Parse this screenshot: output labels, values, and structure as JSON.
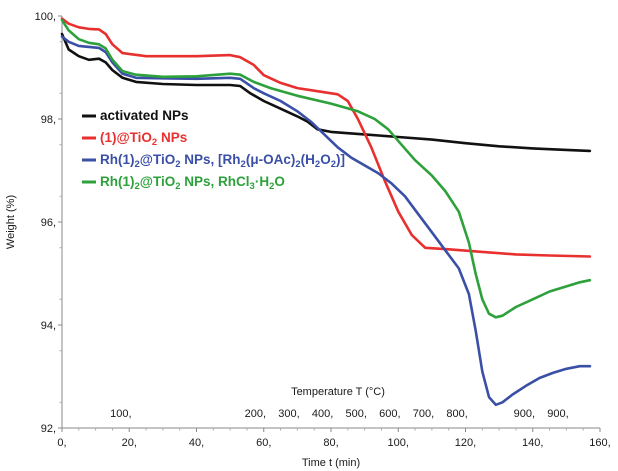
{
  "chart_data": {
    "type": "line",
    "xlabel": "Time  t  (min)",
    "ylabel": "Weight (%)",
    "secondary_axis_label": "Temperature  T  (°C)",
    "xlim": [
      0,
      160
    ],
    "ylim": [
      92,
      100
    ],
    "x_ticks": [
      0,
      20,
      40,
      60,
      80,
      100,
      120,
      140,
      160
    ],
    "x_tick_labels": [
      "0,",
      "20,",
      "40,",
      "60,",
      "80,",
      "100,",
      "120,",
      "140,",
      "160,"
    ],
    "y_ticks": [
      92,
      94,
      96,
      98,
      100
    ],
    "y_tick_labels": [
      "92,",
      "94,",
      "96,",
      "98,",
      "100,"
    ],
    "temperature_ticks": [
      {
        "x": 17.5,
        "label": "100,"
      },
      {
        "x": 57.5,
        "label": "200,"
      },
      {
        "x": 67.5,
        "label": "300,"
      },
      {
        "x": 77.5,
        "label": "400,"
      },
      {
        "x": 87.5,
        "label": "500,"
      },
      {
        "x": 97.5,
        "label": "600,"
      },
      {
        "x": 107.5,
        "label": "700,"
      },
      {
        "x": 117.5,
        "label": "800,"
      },
      {
        "x": 137.5,
        "label": "900,"
      },
      {
        "x": 147.5,
        "label": "900,"
      }
    ],
    "grid": false,
    "legend_position": "left",
    "series": [
      {
        "name": "activated NPs",
        "color": "#111111",
        "points": [
          [
            0,
            99.65
          ],
          [
            2,
            99.35
          ],
          [
            5,
            99.22
          ],
          [
            8,
            99.15
          ],
          [
            11,
            99.17
          ],
          [
            13,
            99.1
          ],
          [
            15,
            98.95
          ],
          [
            18,
            98.8
          ],
          [
            22,
            98.72
          ],
          [
            30,
            98.68
          ],
          [
            40,
            98.66
          ],
          [
            50,
            98.66
          ],
          [
            53,
            98.64
          ],
          [
            56,
            98.5
          ],
          [
            60,
            98.35
          ],
          [
            65,
            98.2
          ],
          [
            70,
            98.05
          ],
          [
            73,
            97.95
          ],
          [
            76,
            97.8
          ],
          [
            80,
            97.75
          ],
          [
            90,
            97.7
          ],
          [
            100,
            97.65
          ],
          [
            110,
            97.6
          ],
          [
            120,
            97.53
          ],
          [
            130,
            97.47
          ],
          [
            140,
            97.43
          ],
          [
            150,
            97.4
          ],
          [
            157,
            97.38
          ]
        ]
      },
      {
        "name": "(1)@TiO2 NPs",
        "color": "#e8302f",
        "points": [
          [
            0,
            99.95
          ],
          [
            2,
            99.85
          ],
          [
            5,
            99.78
          ],
          [
            8,
            99.75
          ],
          [
            11,
            99.74
          ],
          [
            13,
            99.65
          ],
          [
            15,
            99.45
          ],
          [
            18,
            99.28
          ],
          [
            25,
            99.22
          ],
          [
            40,
            99.22
          ],
          [
            50,
            99.24
          ],
          [
            53,
            99.2
          ],
          [
            57,
            99.05
          ],
          [
            60,
            98.85
          ],
          [
            65,
            98.7
          ],
          [
            70,
            98.6
          ],
          [
            75,
            98.55
          ],
          [
            82,
            98.48
          ],
          [
            85,
            98.35
          ],
          [
            88,
            98.0
          ],
          [
            92,
            97.45
          ],
          [
            96,
            96.8
          ],
          [
            100,
            96.2
          ],
          [
            104,
            95.75
          ],
          [
            108,
            95.5
          ],
          [
            115,
            95.47
          ],
          [
            125,
            95.42
          ],
          [
            135,
            95.37
          ],
          [
            145,
            95.35
          ],
          [
            157,
            95.33
          ]
        ]
      },
      {
        "name": "Rh(1)2@TiO2 NPs, [Rh2(μ-OAc)2(H2O2)]",
        "color": "#3a4fa6",
        "points": [
          [
            0,
            99.6
          ],
          [
            2,
            99.5
          ],
          [
            5,
            99.42
          ],
          [
            8,
            99.4
          ],
          [
            11,
            99.38
          ],
          [
            13,
            99.3
          ],
          [
            15,
            99.1
          ],
          [
            18,
            98.88
          ],
          [
            22,
            98.8
          ],
          [
            30,
            98.79
          ],
          [
            40,
            98.78
          ],
          [
            50,
            98.8
          ],
          [
            53,
            98.78
          ],
          [
            57,
            98.6
          ],
          [
            60,
            98.5
          ],
          [
            65,
            98.35
          ],
          [
            70,
            98.15
          ],
          [
            74,
            97.95
          ],
          [
            78,
            97.7
          ],
          [
            82,
            97.45
          ],
          [
            86,
            97.25
          ],
          [
            90,
            97.1
          ],
          [
            94,
            96.95
          ],
          [
            98,
            96.75
          ],
          [
            102,
            96.5
          ],
          [
            106,
            96.15
          ],
          [
            110,
            95.8
          ],
          [
            114,
            95.45
          ],
          [
            118,
            95.1
          ],
          [
            121,
            94.6
          ],
          [
            123,
            93.9
          ],
          [
            125,
            93.1
          ],
          [
            127,
            92.6
          ],
          [
            129,
            92.45
          ],
          [
            131,
            92.5
          ],
          [
            134,
            92.65
          ],
          [
            138,
            92.82
          ],
          [
            142,
            92.97
          ],
          [
            146,
            93.07
          ],
          [
            150,
            93.15
          ],
          [
            154,
            93.2
          ],
          [
            157,
            93.2
          ]
        ]
      },
      {
        "name": "Rh(1)2@TiO2 NPs, RhCl3·H2O",
        "color": "#2da13b",
        "points": [
          [
            0,
            99.92
          ],
          [
            2,
            99.72
          ],
          [
            5,
            99.55
          ],
          [
            8,
            99.48
          ],
          [
            11,
            99.45
          ],
          [
            13,
            99.37
          ],
          [
            15,
            99.15
          ],
          [
            18,
            98.93
          ],
          [
            22,
            98.86
          ],
          [
            30,
            98.82
          ],
          [
            40,
            98.83
          ],
          [
            50,
            98.88
          ],
          [
            53,
            98.86
          ],
          [
            57,
            98.72
          ],
          [
            62,
            98.6
          ],
          [
            70,
            98.45
          ],
          [
            80,
            98.3
          ],
          [
            88,
            98.15
          ],
          [
            93,
            98.0
          ],
          [
            97,
            97.8
          ],
          [
            101,
            97.5
          ],
          [
            105,
            97.2
          ],
          [
            110,
            96.9
          ],
          [
            114,
            96.6
          ],
          [
            118,
            96.2
          ],
          [
            121,
            95.6
          ],
          [
            123,
            95.0
          ],
          [
            125,
            94.5
          ],
          [
            127,
            94.22
          ],
          [
            129,
            94.15
          ],
          [
            131,
            94.18
          ],
          [
            135,
            94.35
          ],
          [
            140,
            94.5
          ],
          [
            145,
            94.65
          ],
          [
            150,
            94.75
          ],
          [
            154,
            94.83
          ],
          [
            157,
            94.87
          ]
        ]
      }
    ]
  },
  "legend": [
    {
      "color": "#111111",
      "parts": [
        {
          "t": "activated NPs"
        }
      ]
    },
    {
      "color": "#e8302f",
      "parts": [
        {
          "t": "(1)@TiO"
        },
        {
          "t": "2",
          "sub": true
        },
        {
          "t": " NPs"
        }
      ]
    },
    {
      "color": "#3a4fa6",
      "parts": [
        {
          "t": "Rh(1)"
        },
        {
          "t": "2",
          "sub": true
        },
        {
          "t": "@TiO"
        },
        {
          "t": "2",
          "sub": true
        },
        {
          "t": " NPs, [Rh"
        },
        {
          "t": "2",
          "sub": true
        },
        {
          "t": "(μ-OAc)"
        },
        {
          "t": "2",
          "sub": true
        },
        {
          "t": "(H"
        },
        {
          "t": "2",
          "sub": true
        },
        {
          "t": "O"
        },
        {
          "t": "2",
          "sub": true
        },
        {
          "t": ")]"
        }
      ]
    },
    {
      "color": "#2da13b",
      "parts": [
        {
          "t": "Rh(1)"
        },
        {
          "t": "2",
          "sub": true
        },
        {
          "t": "@TiO"
        },
        {
          "t": "2",
          "sub": true
        },
        {
          "t": " NPs, RhCl"
        },
        {
          "t": "3",
          "sub": true
        },
        {
          "t": "·H"
        },
        {
          "t": "2",
          "sub": true
        },
        {
          "t": "O"
        }
      ]
    }
  ]
}
